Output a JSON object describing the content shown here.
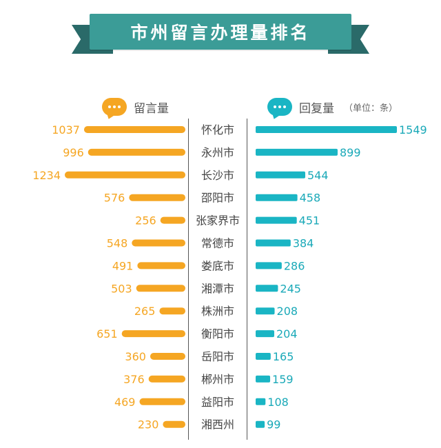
{
  "title": "市州留言办理量排名",
  "headers": {
    "left_label": "留言量",
    "right_label": "回复量",
    "unit": "（单位：条）"
  },
  "colors": {
    "ribbon": "#3b9c97",
    "ribbon_tail": "#2a6a69",
    "left_bar": "#f5a623",
    "right_bar": "#1ab5c4",
    "left_value_text": "#f5a623",
    "right_value_text": "#1aa9b8",
    "city_text": "#444444"
  },
  "chart_data": {
    "type": "bar",
    "categories": [
      "怀化市",
      "永州市",
      "长沙市",
      "邵阳市",
      "张家界市",
      "常德市",
      "娄底市",
      "湘潭市",
      "株洲市",
      "衡阳市",
      "岳阳市",
      "郴州市",
      "益阳市",
      "湘西州"
    ],
    "series": [
      {
        "name": "留言量",
        "values": [
          1037,
          996,
          1234,
          576,
          256,
          548,
          491,
          503,
          265,
          651,
          360,
          376,
          469,
          230
        ]
      },
      {
        "name": "回复量",
        "values": [
          1549,
          899,
          544,
          458,
          451,
          384,
          286,
          245,
          208,
          204,
          165,
          159,
          108,
          99
        ]
      }
    ],
    "value_labels": {
      "left": [
        "1037",
        "996",
        "1234",
        "576",
        "256",
        "548",
        "491",
        "503",
        "265",
        "651",
        "360",
        "376",
        "469",
        "230"
      ],
      "right": [
        "1549",
        "899",
        "544",
        "458",
        "451",
        "384",
        "286",
        "245",
        "208",
        "204",
        "165",
        "159",
        "108",
        "99"
      ]
    },
    "layout": "butterfly"
  }
}
